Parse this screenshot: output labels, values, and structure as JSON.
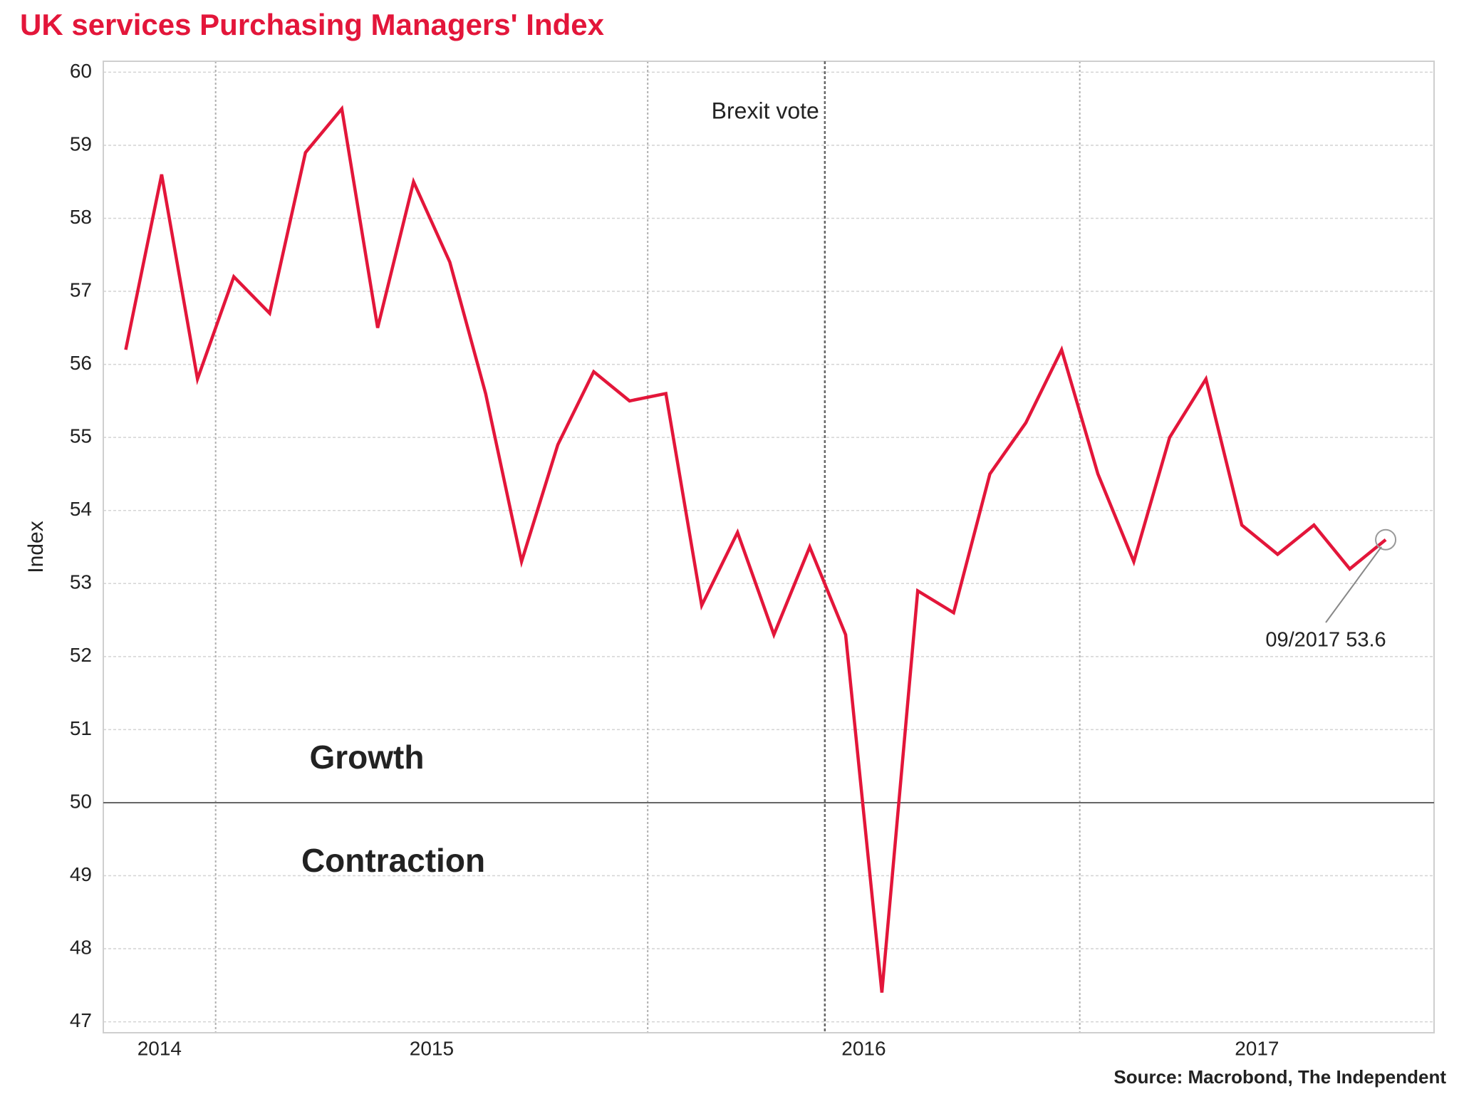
{
  "chart_data": {
    "type": "line",
    "title": "UK services Purchasing Managers' Index",
    "ylabel": "Index",
    "source": "Source: Macrobond, The Independent",
    "x": [
      2014.792,
      2014.875,
      2014.958,
      2015.042,
      2015.125,
      2015.208,
      2015.292,
      2015.375,
      2015.458,
      2015.542,
      2015.625,
      2015.708,
      2015.792,
      2015.875,
      2015.958,
      2016.042,
      2016.125,
      2016.208,
      2016.292,
      2016.375,
      2016.458,
      2016.542,
      2016.625,
      2016.708,
      2016.792,
      2016.875,
      2016.958,
      2017.042,
      2017.125,
      2017.208,
      2017.292,
      2017.375,
      2017.458,
      2017.542,
      2017.625,
      2017.708
    ],
    "series": [
      {
        "name": "UK services PMI",
        "color": "#e3163a",
        "values": [
          56.2,
          58.6,
          55.8,
          57.2,
          56.7,
          58.9,
          59.5,
          56.5,
          58.5,
          57.4,
          55.6,
          53.3,
          54.9,
          55.9,
          55.5,
          55.6,
          52.7,
          53.7,
          52.3,
          53.5,
          52.3,
          47.4,
          52.9,
          52.6,
          54.5,
          55.2,
          56.2,
          54.5,
          53.3,
          55.0,
          55.8,
          53.8,
          53.4,
          53.8,
          53.2,
          53.6
        ]
      }
    ],
    "xlim": [
      2014.74,
      2017.82
    ],
    "xticks": [
      {
        "value": 2014,
        "label": "2014"
      },
      {
        "value": 2015,
        "label": "2015"
      },
      {
        "value": 2016,
        "label": "2016"
      },
      {
        "value": 2017,
        "label": "2017"
      }
    ],
    "ylim": [
      46.85,
      60.15
    ],
    "yticks": [
      47,
      48,
      49,
      50,
      51,
      52,
      53,
      54,
      55,
      56,
      57,
      58,
      59,
      60
    ],
    "grid": true,
    "reference_line": 50,
    "event_line": {
      "x": 2016.41,
      "label": "Brexit vote"
    },
    "region_labels": [
      "Growth",
      "Contraction"
    ],
    "last_point_label": "09/2017 53.6"
  }
}
